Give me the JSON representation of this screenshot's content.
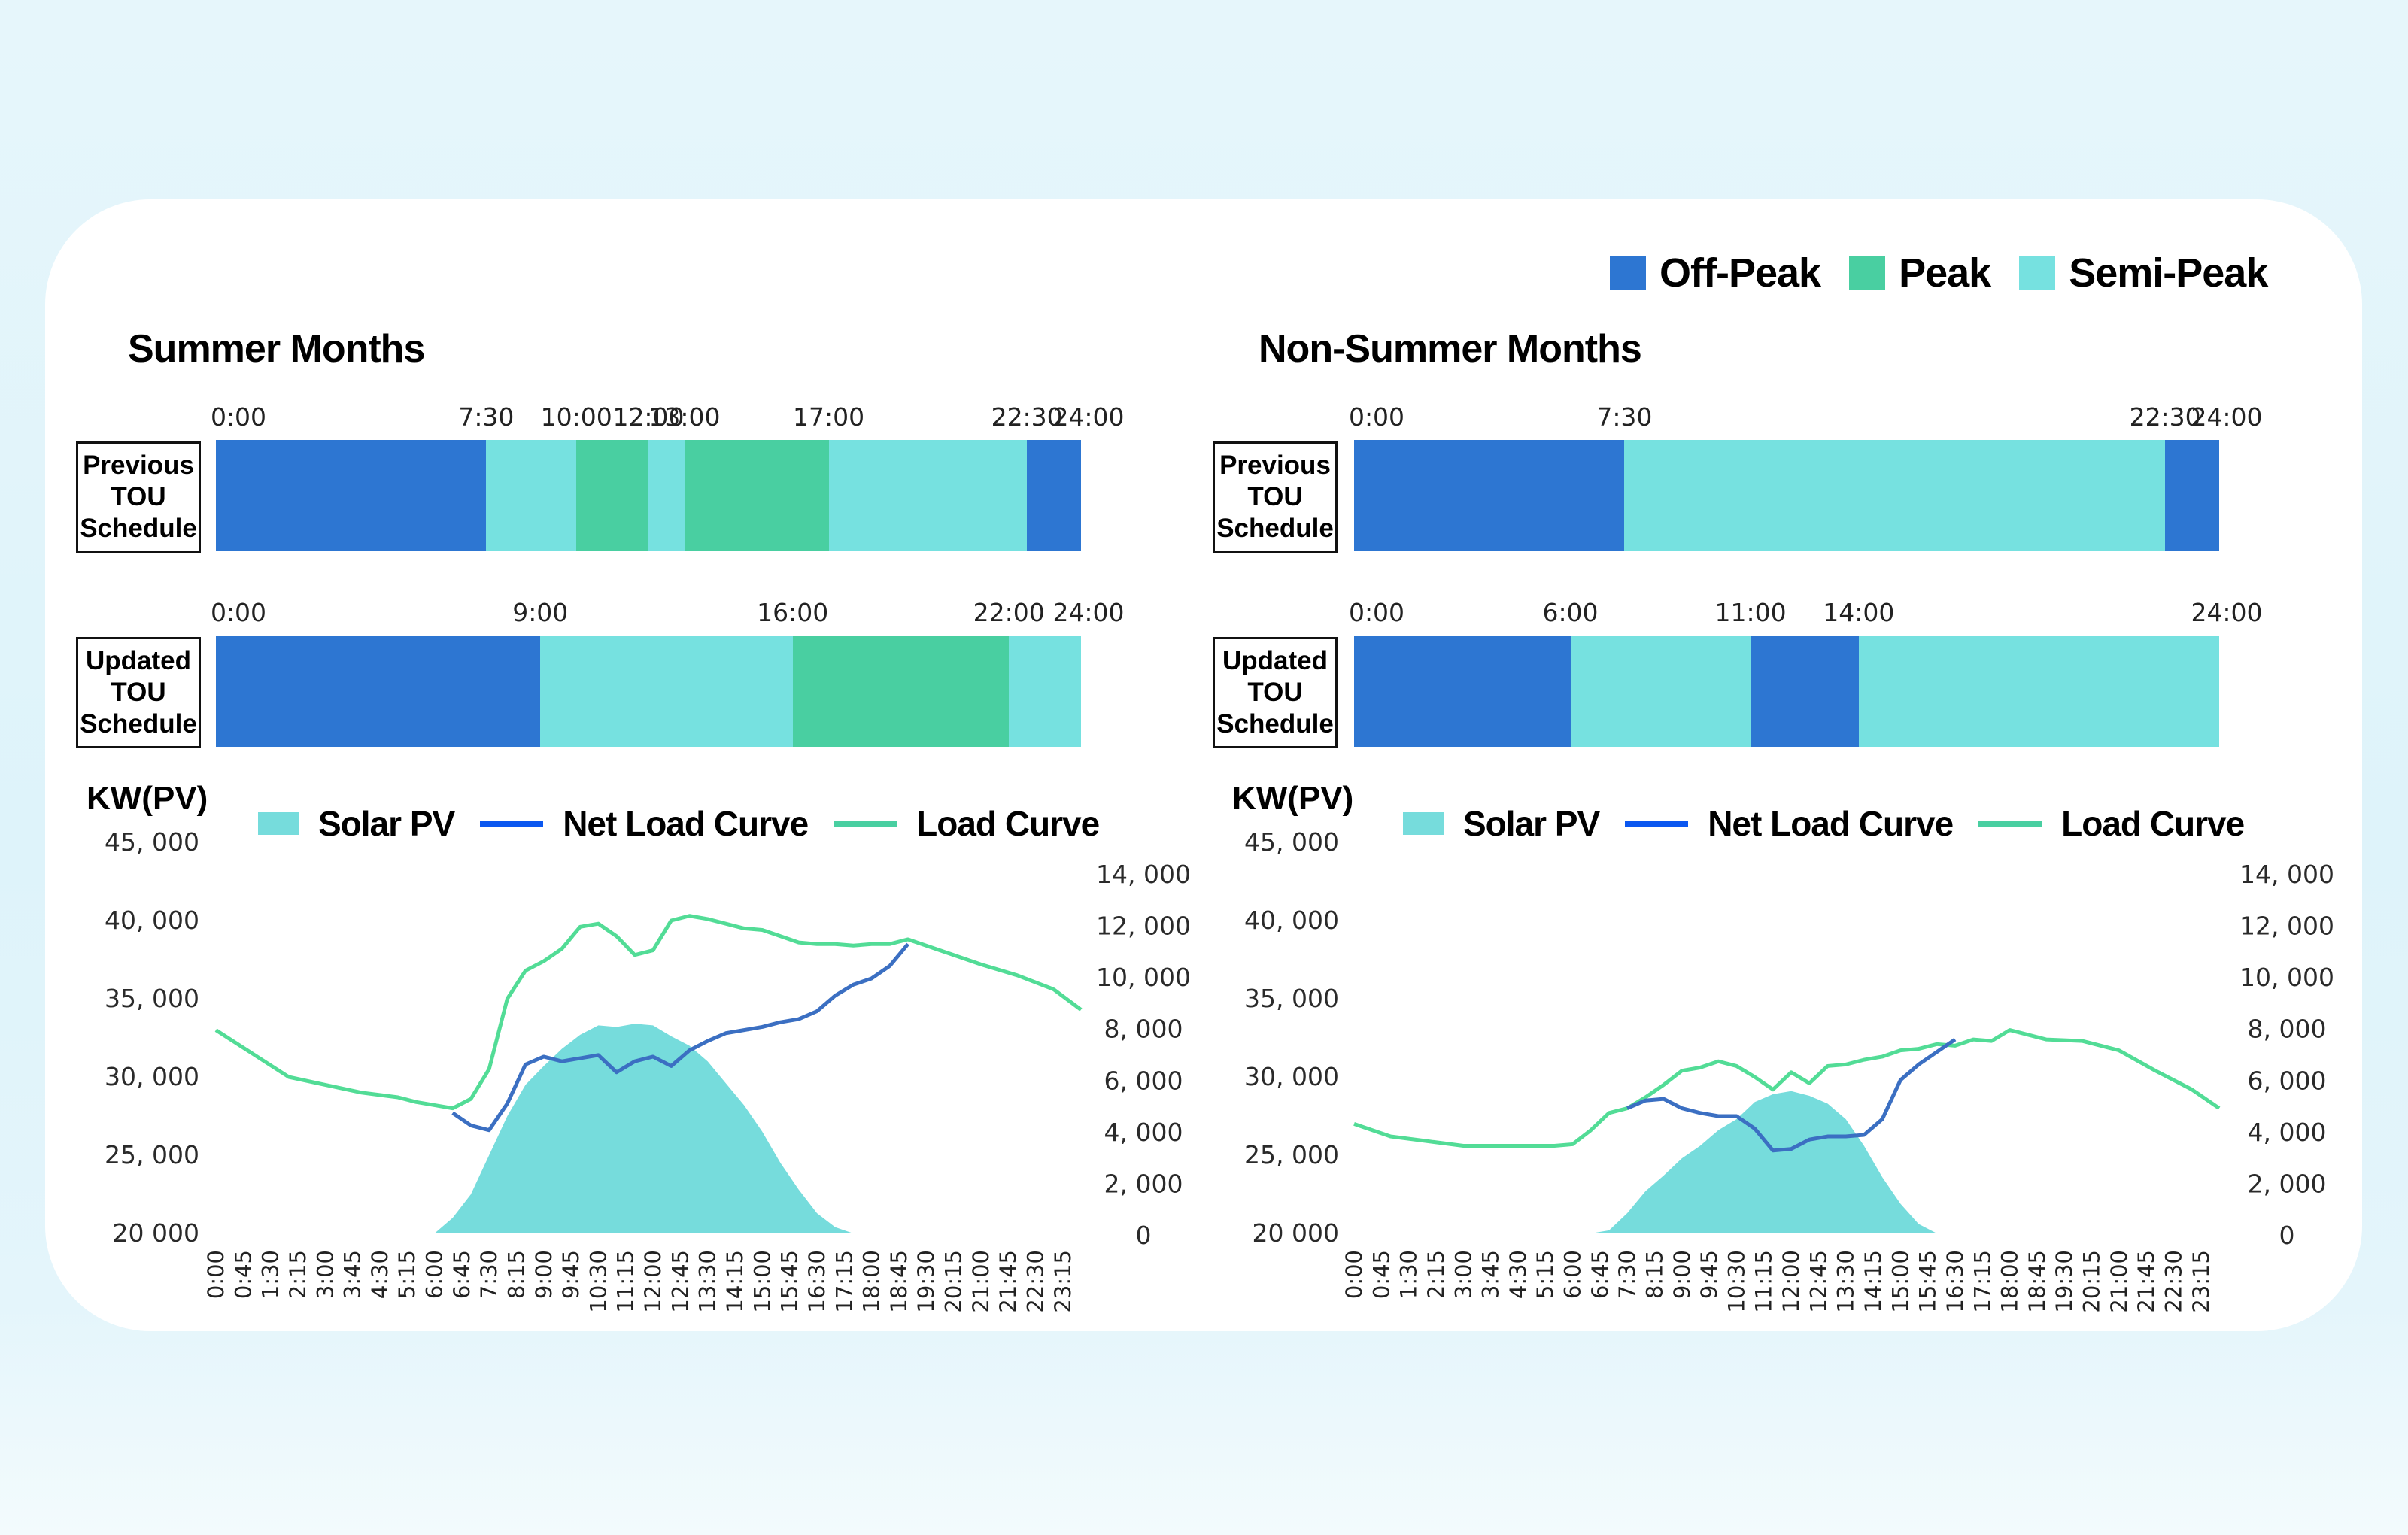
{
  "colors": {
    "off_peak": "#2d76d2",
    "peak": "#49cfa1",
    "semi_peak": "#76e1e0",
    "solar_fill": "#76dcdc",
    "net_load": "#3b6fc2",
    "load": "#52dc96",
    "net_load_legend": "#0b57f0",
    "load_legend": "#49cfa1"
  },
  "legend": {
    "items": [
      {
        "label": "Off-Peak",
        "color_key": "off_peak"
      },
      {
        "label": "Peak",
        "color_key": "peak"
      },
      {
        "label": "Semi-Peak",
        "color_key": "semi_peak"
      }
    ]
  },
  "row_labels": {
    "previous": [
      "Previous",
      "TOU",
      "Schedule"
    ],
    "updated": [
      "Updated",
      "TOU",
      "Schedule"
    ]
  },
  "chart_legend": {
    "solar": "Solar PV",
    "net_load": "Net Load Curve",
    "load": "Load Curve"
  },
  "chart_data": [
    {
      "type": "table",
      "title": "Summer Months",
      "name": "summer_tou",
      "schedules": [
        {
          "name": "Previous TOU Schedule",
          "tick_labels": [
            "0:00",
            "7:30",
            "10:00",
            "12:00",
            "13:00",
            "17:00",
            "22:30",
            "24:00"
          ],
          "segments": [
            {
              "start": 0,
              "end": 7.5,
              "period": "Off-Peak"
            },
            {
              "start": 7.5,
              "end": 10,
              "period": "Semi-Peak"
            },
            {
              "start": 10,
              "end": 12,
              "period": "Peak"
            },
            {
              "start": 12,
              "end": 13,
              "period": "Semi-Peak"
            },
            {
              "start": 13,
              "end": 17,
              "period": "Peak"
            },
            {
              "start": 17,
              "end": 22.5,
              "period": "Semi-Peak"
            },
            {
              "start": 22.5,
              "end": 24,
              "period": "Off-Peak"
            }
          ]
        },
        {
          "name": "Updated TOU Schedule",
          "tick_labels": [
            "0:00",
            "9:00",
            "16:00",
            "22:00",
            "24:00"
          ],
          "segments": [
            {
              "start": 0,
              "end": 9,
              "period": "Off-Peak"
            },
            {
              "start": 9,
              "end": 16,
              "period": "Semi-Peak"
            },
            {
              "start": 16,
              "end": 22,
              "period": "Peak"
            },
            {
              "start": 22,
              "end": 24,
              "period": "Semi-Peak"
            }
          ]
        }
      ]
    },
    {
      "type": "table",
      "title": "Non-Summer Months",
      "name": "nonsummer_tou",
      "schedules": [
        {
          "name": "Previous TOU Schedule",
          "tick_labels": [
            "0:00",
            "7:30",
            "22:30",
            "24:00"
          ],
          "segments": [
            {
              "start": 0,
              "end": 7.5,
              "period": "Off-Peak"
            },
            {
              "start": 7.5,
              "end": 22.5,
              "period": "Semi-Peak"
            },
            {
              "start": 22.5,
              "end": 24,
              "period": "Off-Peak"
            }
          ]
        },
        {
          "name": "Updated TOU Schedule",
          "tick_labels": [
            "0:00",
            "6:00",
            "11:00",
            "14:00",
            "24:00"
          ],
          "segments": [
            {
              "start": 0,
              "end": 6,
              "period": "Off-Peak"
            },
            {
              "start": 6,
              "end": 11,
              "period": "Semi-Peak"
            },
            {
              "start": 11,
              "end": 14,
              "period": "Off-Peak"
            },
            {
              "start": 14,
              "end": 24,
              "period": "Semi-Peak"
            }
          ]
        }
      ]
    },
    {
      "type": "area",
      "name": "summer_load",
      "title": "",
      "ylabel": "KW(PV)",
      "xlabel": "",
      "legend": [
        "Solar PV",
        "Net Load Curve",
        "Load Curve"
      ],
      "legend_position": "top",
      "ylim_left": [
        20000,
        45000
      ],
      "yticks_left": [
        "20 000",
        "25, 000",
        "30, 000",
        "35, 000",
        "40, 000",
        "45, 000"
      ],
      "ylim_right": [
        0,
        14000
      ],
      "yticks_right": [
        "0",
        "2, 000",
        "4, 000",
        "6, 000",
        "8, 000",
        "10, 000",
        "12, 000",
        "14, 000"
      ],
      "x_tick_labels": [
        "0:00",
        "0:45",
        "1:30",
        "2:15",
        "3:00",
        "3:45",
        "4:30",
        "5:15",
        "6:00",
        "6:45",
        "7:30",
        "8:15",
        "9:00",
        "9:45",
        "10:30",
        "11:15",
        "12:00",
        "12:45",
        "13:30",
        "14:15",
        "15:00",
        "15:45",
        "16:30",
        "17:15",
        "18:00",
        "18:45",
        "19:30",
        "20:15",
        "21:00",
        "21:45",
        "22:30",
        "23:15"
      ],
      "x_hours": [
        0,
        1,
        2,
        3,
        4,
        5,
        5.5,
        6,
        6.5,
        7,
        7.5,
        8,
        8.5,
        9,
        9.5,
        10,
        10.5,
        11,
        11.5,
        12,
        12.5,
        13,
        13.5,
        14,
        14.5,
        15,
        15.5,
        16,
        16.5,
        17,
        17.5,
        18,
        18.5,
        19,
        20,
        21,
        22,
        23,
        23.75
      ],
      "series": [
        {
          "name": "Load Curve",
          "values": [
            33000,
            31500,
            30000,
            29500,
            29000,
            28700,
            28400,
            28200,
            28000,
            28600,
            30500,
            35000,
            36800,
            37400,
            38200,
            39600,
            39800,
            39000,
            37800,
            38100,
            40000,
            40300,
            40100,
            39800,
            39500,
            39400,
            39000,
            38600,
            38500,
            38500,
            38400,
            38500,
            38500,
            38800,
            38000,
            37200,
            36500,
            35600,
            34300
          ]
        },
        {
          "name": "Net Load Curve",
          "values": [
            null,
            null,
            null,
            null,
            null,
            null,
            null,
            null,
            27700,
            26900,
            26600,
            28300,
            30800,
            31300,
            31000,
            31200,
            31400,
            30300,
            31000,
            31300,
            30700,
            31700,
            32300,
            32800,
            33000,
            33200,
            33500,
            33700,
            34200,
            35200,
            35900,
            36300,
            37100,
            38500,
            null,
            null,
            null,
            null,
            null
          ]
        },
        {
          "name": "Solar PV",
          "values": [
            20000,
            20000,
            20000,
            20000,
            20000,
            20000,
            20000,
            20000,
            21000,
            22500,
            25000,
            27500,
            29500,
            30700,
            31800,
            32700,
            33300,
            33200,
            33400,
            33300,
            32600,
            32000,
            31000,
            29600,
            28200,
            26500,
            24500,
            22800,
            21300,
            20400,
            20000,
            20000,
            20000,
            20000,
            20000,
            20000,
            20000,
            20000,
            20000
          ]
        }
      ]
    },
    {
      "type": "area",
      "name": "nonsummer_load",
      "title": "",
      "ylabel": "KW(PV)",
      "xlabel": "",
      "legend": [
        "Solar PV",
        "Net Load Curve",
        "Load Curve"
      ],
      "legend_position": "top",
      "ylim_left": [
        20000,
        45000
      ],
      "yticks_left": [
        "20 000",
        "25, 000",
        "30, 000",
        "35, 000",
        "40, 000",
        "45, 000"
      ],
      "ylim_right": [
        0,
        14000
      ],
      "yticks_right": [
        "0",
        "2, 000",
        "4, 000",
        "6, 000",
        "8, 000",
        "10, 000",
        "12, 000",
        "14, 000"
      ],
      "x_tick_labels": [
        "0:00",
        "0:45",
        "1:30",
        "2:15",
        "3:00",
        "3:45",
        "4:30",
        "5:15",
        "6:00",
        "6:45",
        "7:30",
        "8:15",
        "9:00",
        "9:45",
        "10:30",
        "11:15",
        "12:00",
        "12:45",
        "13:30",
        "14:15",
        "15:00",
        "15:45",
        "16:30",
        "17:15",
        "18:00",
        "18:45",
        "19:30",
        "20:15",
        "21:00",
        "21:45",
        "22:30",
        "23:15"
      ],
      "x_hours": [
        0,
        1,
        2,
        3,
        4,
        5,
        5.5,
        6,
        6.5,
        7,
        7.5,
        8,
        8.5,
        9,
        9.5,
        10,
        10.5,
        11,
        11.5,
        12,
        12.5,
        13,
        13.5,
        14,
        14.5,
        15,
        15.5,
        16,
        16.5,
        17,
        17.5,
        18,
        18.5,
        19,
        20,
        21,
        22,
        23,
        23.75
      ],
      "series": [
        {
          "name": "Load Curve",
          "values": [
            27000,
            26200,
            25900,
            25600,
            25600,
            25600,
            25600,
            25700,
            26600,
            27700,
            28000,
            28700,
            29500,
            30400,
            30600,
            31000,
            30700,
            30000,
            29200,
            30300,
            29600,
            30700,
            30800,
            31100,
            31300,
            31700,
            31800,
            32100,
            32000,
            32400,
            32300,
            33000,
            32700,
            32400,
            32300,
            31700,
            30400,
            29200,
            28000
          ]
        },
        {
          "name": "Net Load Curve",
          "values": [
            null,
            null,
            null,
            null,
            null,
            null,
            null,
            null,
            null,
            null,
            28000,
            28500,
            28600,
            28000,
            27700,
            27500,
            27500,
            26700,
            25300,
            25400,
            26000,
            26200,
            26200,
            26300,
            27300,
            29800,
            30800,
            31600,
            32400,
            null,
            null,
            null,
            null,
            null,
            null,
            null,
            null,
            null,
            null
          ]
        },
        {
          "name": "Solar PV",
          "values": [
            null,
            null,
            null,
            null,
            null,
            null,
            20000,
            20000,
            20000,
            20200,
            21300,
            22700,
            23700,
            24800,
            25600,
            26600,
            27300,
            28400,
            28900,
            29100,
            28800,
            28300,
            27300,
            25600,
            23600,
            21900,
            20600,
            20000,
            null,
            null,
            null,
            null,
            null,
            null,
            null,
            null,
            null,
            null,
            null
          ]
        }
      ]
    }
  ]
}
